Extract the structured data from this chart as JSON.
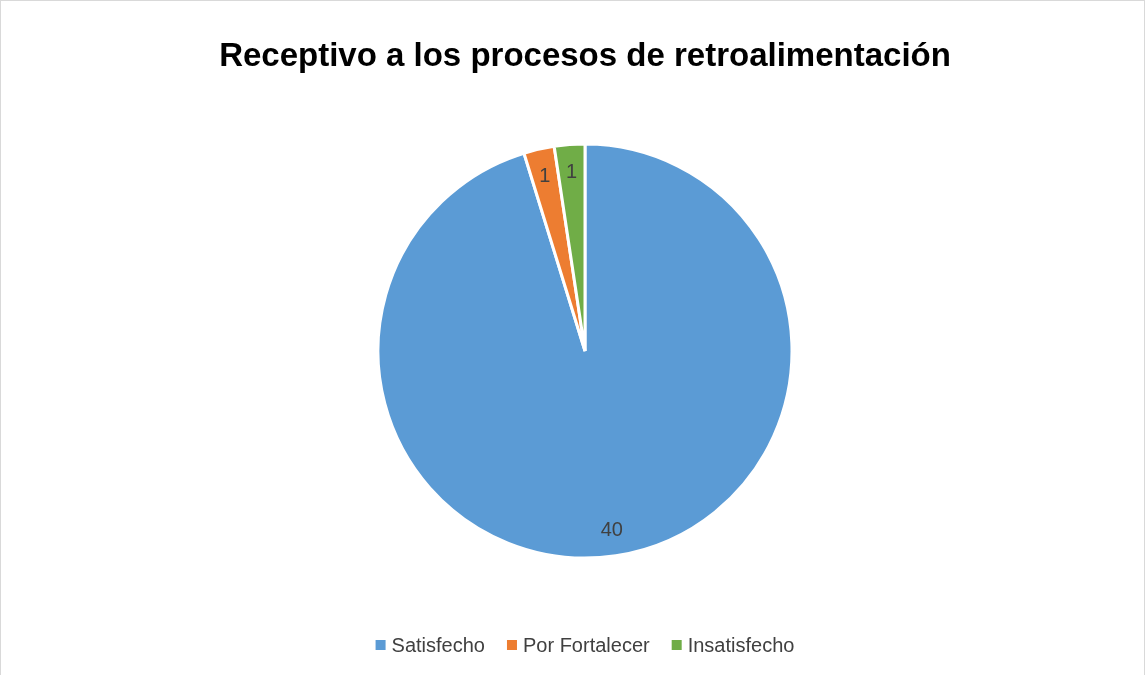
{
  "chart_data": {
    "type": "pie",
    "title": "Receptivo a los procesos de retroalimentación",
    "categories": [
      "Satisfecho",
      "Por Fortalecer",
      "Insatisfecho"
    ],
    "values": [
      40,
      1,
      1
    ],
    "colors": [
      "#5b9bd5",
      "#ed7d31",
      "#70ad47"
    ],
    "data_labels": true,
    "legend": "bottom"
  }
}
